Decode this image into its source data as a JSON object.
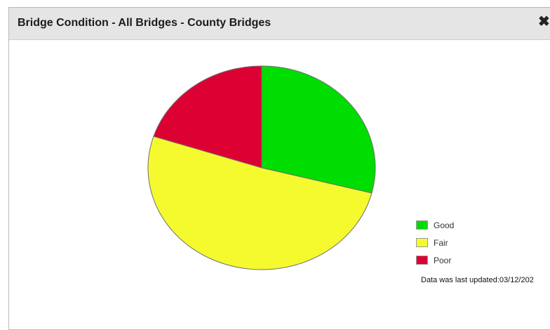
{
  "dialog": {
    "title": "Bridge Condition - All Bridges - County Bridges",
    "close_icon": "close-icon",
    "close_glyph": "✖"
  },
  "chart_data": {
    "type": "pie",
    "categories": [
      "Good",
      "Fair",
      "Poor"
    ],
    "values": [
      29,
      51,
      20
    ],
    "colors": [
      "#00dd00",
      "#f5fa2f",
      "#dd0033"
    ],
    "start_angle_deg": 0,
    "legend_placement": "right"
  },
  "footer": {
    "updated_text": "Data was last updated:03/12/202"
  }
}
